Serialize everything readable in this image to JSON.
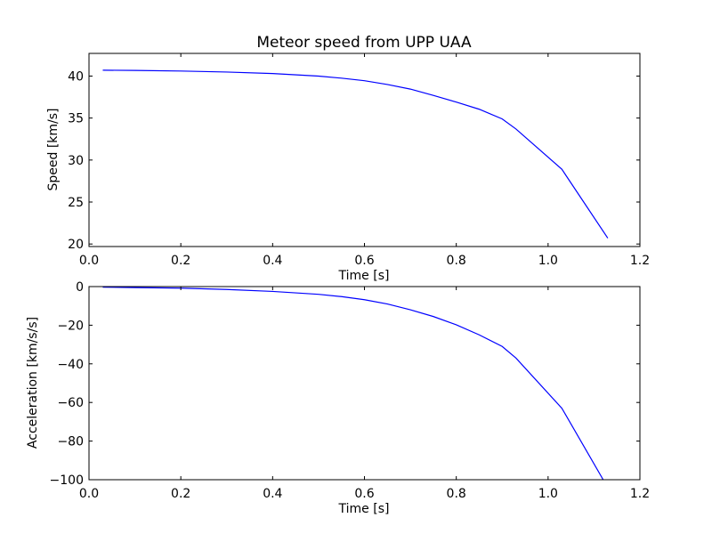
{
  "chart_data": [
    {
      "type": "line",
      "title": "Meteor speed from  UPP UAA",
      "xlabel": "Time [s]",
      "ylabel": "Speed [km/s]",
      "xlim": [
        0.0,
        1.2
      ],
      "ylim": [
        19.7,
        42.7
      ],
      "xticks": [
        "0.0",
        "0.2",
        "0.4",
        "0.6",
        "0.8",
        "1.0",
        "1.2"
      ],
      "yticks": [
        "20",
        "25",
        "30",
        "35",
        "40"
      ],
      "x": [
        0.03,
        0.1,
        0.2,
        0.3,
        0.4,
        0.5,
        0.55,
        0.6,
        0.65,
        0.7,
        0.75,
        0.8,
        0.85,
        0.9,
        0.93,
        1.03,
        1.13
      ],
      "series": [
        {
          "color": "#0000ff",
          "values": [
            40.7,
            40.67,
            40.6,
            40.48,
            40.3,
            40.0,
            39.75,
            39.45,
            39.0,
            38.45,
            37.7,
            36.9,
            36.05,
            34.9,
            33.7,
            28.9,
            20.7
          ]
        }
      ],
      "grid": false
    },
    {
      "type": "line",
      "title": "",
      "xlabel": "Time [s]",
      "ylabel": "Acceleration [km/s/s]",
      "xlim": [
        0.0,
        1.2
      ],
      "ylim": [
        -100,
        0
      ],
      "xticks": [
        "0.0",
        "0.2",
        "0.4",
        "0.6",
        "0.8",
        "1.0",
        "1.2"
      ],
      "yticks": [
        "0",
        "−20",
        "−40",
        "−60",
        "−80",
        "−100"
      ],
      "x": [
        0.03,
        0.1,
        0.2,
        0.3,
        0.4,
        0.5,
        0.55,
        0.6,
        0.65,
        0.7,
        0.75,
        0.8,
        0.85,
        0.9,
        0.93,
        1.03,
        1.12
      ],
      "series": [
        {
          "color": "#0000ff",
          "values": [
            -0.3,
            -0.5,
            -0.8,
            -1.5,
            -2.5,
            -4.0,
            -5.2,
            -6.8,
            -9.0,
            -12.0,
            -15.5,
            -19.8,
            -25.0,
            -31.0,
            -37.0,
            -63.0,
            -100.0
          ]
        }
      ],
      "grid": false
    }
  ]
}
